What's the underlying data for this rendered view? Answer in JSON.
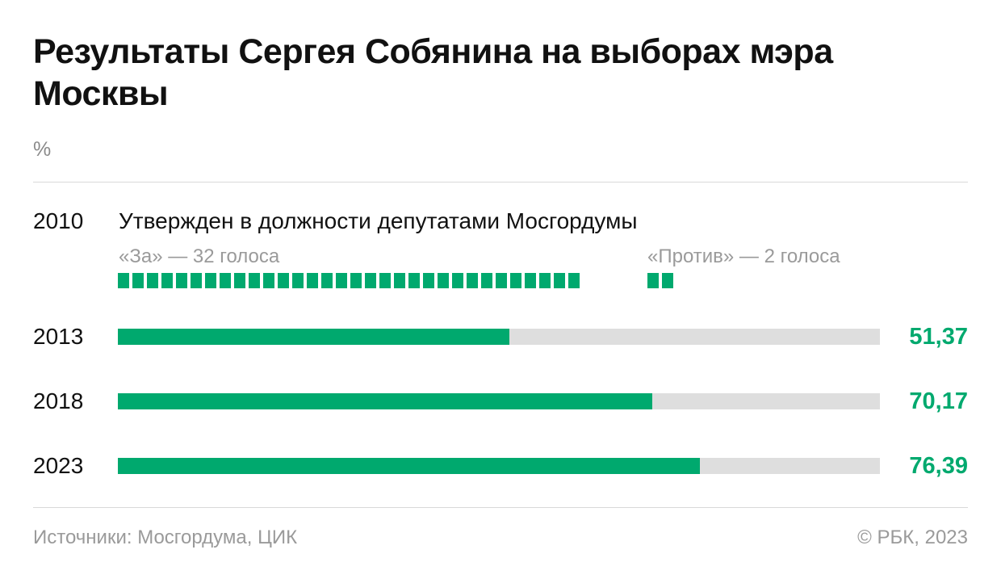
{
  "title": "Результаты Сергея Собянина на выборах мэра Москвы",
  "unit": "%",
  "chart_data": {
    "type": "bar",
    "orientation": "horizontal",
    "title": "Результаты Сергея Собянина на выборах мэра Москвы",
    "unit": "%",
    "xlim": [
      0,
      100
    ],
    "categories": [
      "2013",
      "2018",
      "2023"
    ],
    "values": [
      51.37,
      70.17,
      76.39
    ],
    "value_labels": [
      "51,37",
      "70,17",
      "76,39"
    ],
    "colors": {
      "bar": "#00a96e",
      "track": "#dedede"
    },
    "vote_2010": {
      "year": "2010",
      "note": "Утвержден в должности депутатами Мосгордумы",
      "for_label": "«За» — 32 голоса",
      "for_count": 32,
      "against_label": "«Против» —  2 голоса",
      "against_count": 2
    }
  },
  "footer": {
    "source": "Источники: Мосгордума, ЦИК",
    "copyright": "© РБК, 2023"
  }
}
